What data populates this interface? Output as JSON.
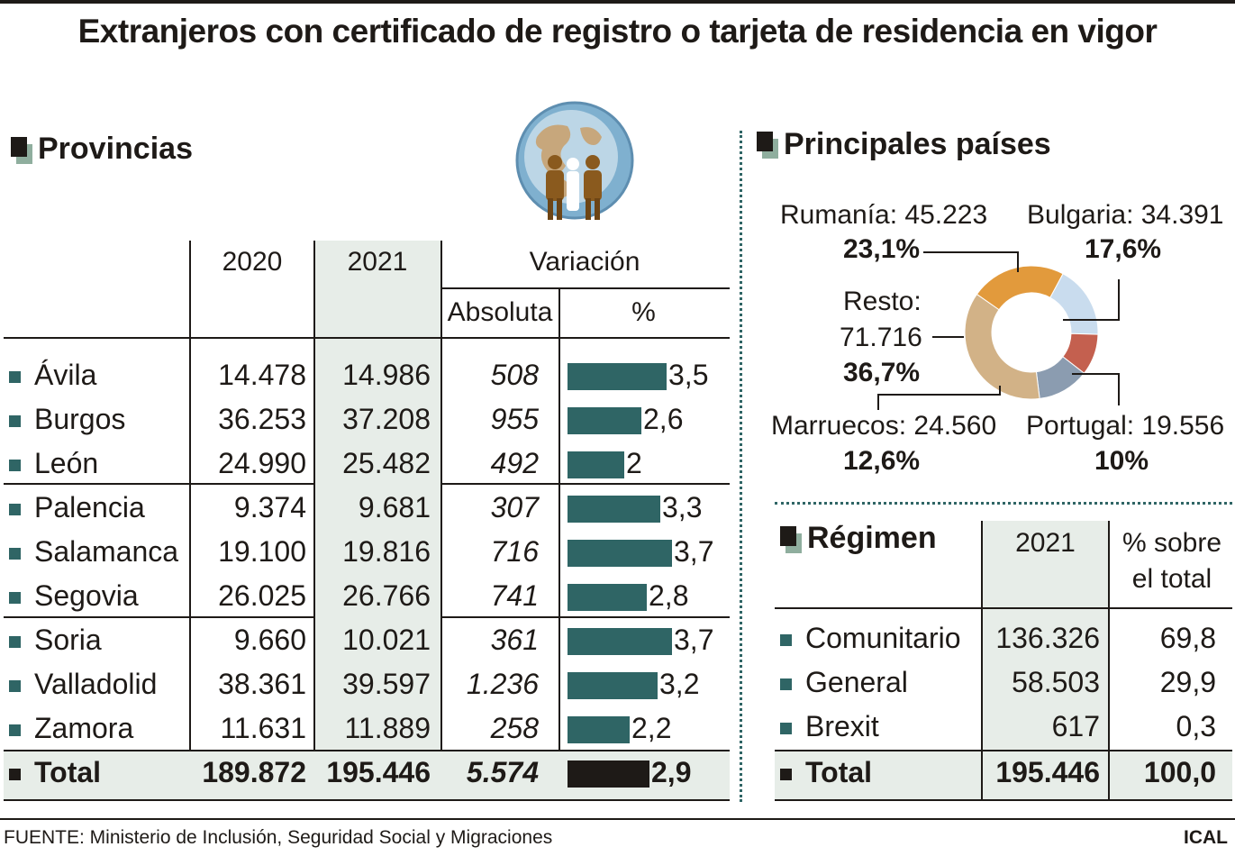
{
  "title": "Extranjeros con certificado de registro o tarjeta de residencia en vigor",
  "source": "FUENTE: Ministerio de Inclusión, Seguridad Social y Migraciones",
  "credit": "ICAL",
  "provincias": {
    "heading": "Provincias",
    "col_2020": "2020",
    "col_2021": "2021",
    "col_variacion": "Variación",
    "col_absoluta": "Absoluta",
    "col_pct": "%",
    "rows": [
      {
        "name": "Ávila",
        "y2020": "14.478",
        "y2021": "14.986",
        "abs": "508",
        "pct": "3,5"
      },
      {
        "name": "Burgos",
        "y2020": "36.253",
        "y2021": "37.208",
        "abs": "955",
        "pct": "2,6"
      },
      {
        "name": "León",
        "y2020": "24.990",
        "y2021": "25.482",
        "abs": "492",
        "pct": "2"
      },
      {
        "name": "Palencia",
        "y2020": "9.374",
        "y2021": "9.681",
        "abs": "307",
        "pct": "3,3"
      },
      {
        "name": "Salamanca",
        "y2020": "19.100",
        "y2021": "19.816",
        "abs": "716",
        "pct": "3,7"
      },
      {
        "name": "Segovia",
        "y2020": "26.025",
        "y2021": "26.766",
        "abs": "741",
        "pct": "2,8"
      },
      {
        "name": "Soria",
        "y2020": "9.660",
        "y2021": "10.021",
        "abs": "361",
        "pct": "3,7"
      },
      {
        "name": "Valladolid",
        "y2020": "38.361",
        "y2021": "39.597",
        "abs": "1.236",
        "pct": "3,2"
      },
      {
        "name": "Zamora",
        "y2020": "11.631",
        "y2021": "11.889",
        "abs": "258",
        "pct": "2,2"
      }
    ],
    "total": {
      "name": "Total",
      "y2020": "189.872",
      "y2021": "195.446",
      "abs": "5.574",
      "pct": "2,9"
    }
  },
  "paises": {
    "heading": "Principales países",
    "labels": {
      "rumania": {
        "name": "Rumanía: 45.223",
        "pct": "23,1%"
      },
      "bulgaria": {
        "name": "Bulgaria: 34.391",
        "pct": "17,6%"
      },
      "resto_1": "Resto:",
      "resto_2": "71.716",
      "resto_pct": "36,7%",
      "marruecos": {
        "name": "Marruecos: 24.560",
        "pct": "12,6%"
      },
      "portugal": {
        "name": "Portugal: 19.556",
        "pct": "10%"
      }
    }
  },
  "regimen": {
    "heading": "Régimen",
    "col_2021": "2021",
    "col_pct_1": "% sobre",
    "col_pct_2": "el total",
    "rows": [
      {
        "name": "Comunitario",
        "v": "136.326",
        "pct": "69,8"
      },
      {
        "name": "General",
        "v": "58.503",
        "pct": "29,9"
      },
      {
        "name": "Brexit",
        "v": "617",
        "pct": "0,3"
      }
    ],
    "total": {
      "name": "Total",
      "v": "195.446",
      "pct": "100,0"
    }
  },
  "colors": {
    "bar": "#2f6565",
    "bar_total": "#1e1a17",
    "shade": "#e7ede8",
    "rumania": "#e29a3c",
    "bulgaria": "#c9dcee",
    "portugal": "#c4604f",
    "marruecos": "#8b9cb0",
    "resto": "#d2b287"
  },
  "chart_data": [
    {
      "type": "bar",
      "orientation": "horizontal",
      "categories": [
        "Ávila",
        "Burgos",
        "León",
        "Palencia",
        "Salamanca",
        "Segovia",
        "Soria",
        "Valladolid",
        "Zamora",
        "Total"
      ],
      "values": [
        3.5,
        2.6,
        2.0,
        3.3,
        3.7,
        2.8,
        3.7,
        3.2,
        2.2,
        2.9
      ]
    },
    {
      "type": "pie",
      "donut": true,
      "categories": [
        "Rumanía",
        "Bulgaria",
        "Portugal",
        "Marruecos",
        "Resto"
      ],
      "values": [
        45223,
        34391,
        19556,
        24560,
        71716
      ],
      "percent": [
        23.1,
        17.6,
        10.0,
        12.6,
        36.7
      ]
    }
  ]
}
